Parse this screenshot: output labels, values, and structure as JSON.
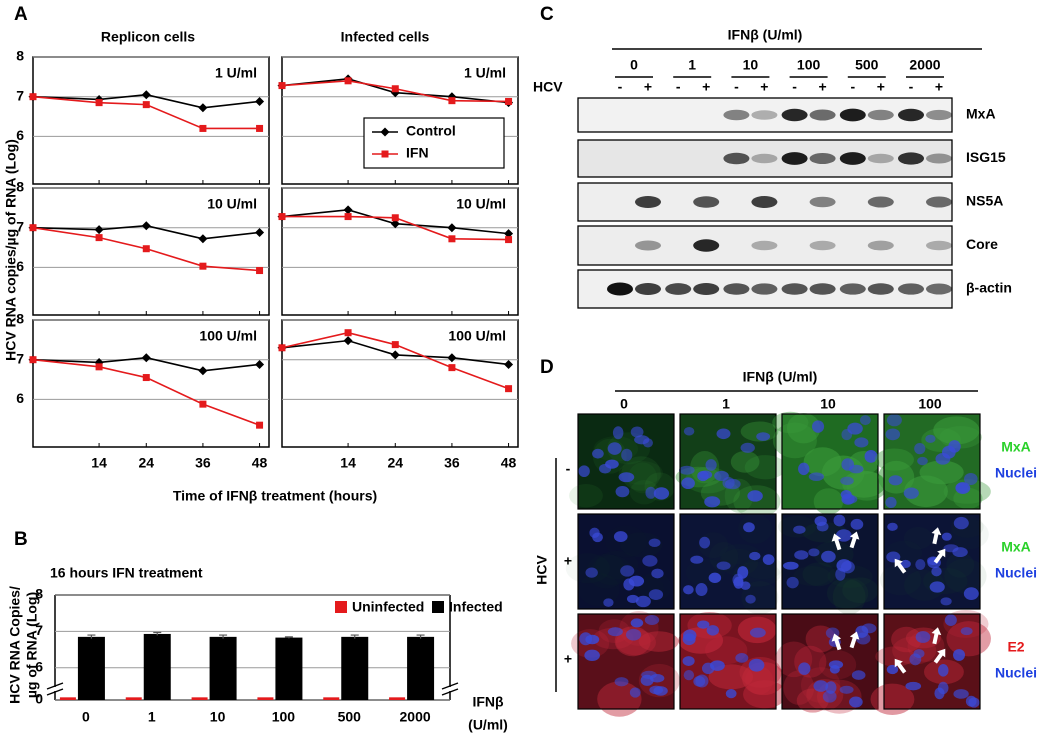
{
  "panel_a": {
    "label": "A",
    "columns": [
      "Replicon cells",
      "Infected cells"
    ],
    "y_label": "HCV RNA copies/µg of RNA (Log)",
    "x_label": "Time of IFNβ treatment (hours)"
  },
  "panel_b": {
    "label": "B"
  },
  "chart_data": [
    {
      "type": "line",
      "title": "1 U/ml",
      "x": [
        0,
        14,
        24,
        36,
        48
      ],
      "xlim": [
        0,
        50
      ],
      "xticks": [
        14,
        24,
        36,
        48
      ],
      "ylim": [
        4.8,
        8
      ],
      "yticks": [
        6,
        7,
        8
      ],
      "grid": true,
      "legend": false,
      "series": [
        {
          "name": "Control",
          "color": "#000000",
          "marker": "diamond",
          "values": [
            7,
            6.93,
            7.05,
            6.72,
            6.88
          ]
        },
        {
          "name": "IFN",
          "color": "#e41a1c",
          "marker": "square",
          "values": [
            7,
            6.85,
            6.8,
            6.2,
            6.2
          ]
        }
      ]
    },
    {
      "type": "line",
      "title": "1 U/ml",
      "x": [
        0,
        14,
        24,
        36,
        48
      ],
      "xlim": [
        0,
        50
      ],
      "xticks": [
        14,
        24,
        36,
        48
      ],
      "ylim": [
        4.8,
        8
      ],
      "yticks": [
        6,
        7,
        8
      ],
      "grid": true,
      "legend": "lower right",
      "series": [
        {
          "name": "Control",
          "color": "#000000",
          "marker": "diamond",
          "values": [
            7.28,
            7.45,
            7.1,
            7.0,
            6.85
          ]
        },
        {
          "name": "IFN",
          "color": "#e41a1c",
          "marker": "square",
          "values": [
            7.28,
            7.4,
            7.2,
            6.9,
            6.88
          ]
        }
      ]
    },
    {
      "type": "line",
      "title": "10 U/ml",
      "x": [
        0,
        14,
        24,
        36,
        48
      ],
      "xlim": [
        0,
        50
      ],
      "xticks": [
        14,
        24,
        36,
        48
      ],
      "ylim": [
        4.8,
        8
      ],
      "yticks": [
        6,
        7,
        8
      ],
      "grid": true,
      "legend": false,
      "series": [
        {
          "name": "Control",
          "color": "#000000",
          "marker": "diamond",
          "values": [
            7,
            6.95,
            7.05,
            6.72,
            6.88
          ]
        },
        {
          "name": "IFN",
          "color": "#e41a1c",
          "marker": "square",
          "values": [
            7,
            6.75,
            6.47,
            6.03,
            5.92
          ]
        }
      ]
    },
    {
      "type": "line",
      "title": "10 U/ml",
      "x": [
        0,
        14,
        24,
        36,
        48
      ],
      "xlim": [
        0,
        50
      ],
      "xticks": [
        14,
        24,
        36,
        48
      ],
      "ylim": [
        4.8,
        8
      ],
      "yticks": [
        6,
        7,
        8
      ],
      "grid": true,
      "legend": false,
      "series": [
        {
          "name": "Control",
          "color": "#000000",
          "marker": "diamond",
          "values": [
            7.28,
            7.45,
            7.1,
            7.0,
            6.85
          ]
        },
        {
          "name": "IFN",
          "color": "#e41a1c",
          "marker": "square",
          "values": [
            7.28,
            7.28,
            7.25,
            6.72,
            6.7
          ]
        }
      ]
    },
    {
      "type": "line",
      "title": "100 U/ml",
      "x": [
        0,
        14,
        24,
        36,
        48
      ],
      "xlim": [
        0,
        50
      ],
      "xticks": [
        14,
        24,
        36,
        48
      ],
      "ylim": [
        4.8,
        8
      ],
      "yticks": [
        6,
        7,
        8
      ],
      "grid": true,
      "legend": false,
      "series": [
        {
          "name": "Control",
          "color": "#000000",
          "marker": "diamond",
          "values": [
            7,
            6.93,
            7.05,
            6.72,
            6.88
          ]
        },
        {
          "name": "IFN",
          "color": "#e41a1c",
          "marker": "square",
          "values": [
            7,
            6.82,
            6.55,
            5.88,
            5.35
          ]
        }
      ]
    },
    {
      "type": "line",
      "title": "100 U/ml",
      "x": [
        0,
        14,
        24,
        36,
        48
      ],
      "xlim": [
        0,
        50
      ],
      "xticks": [
        14,
        24,
        36,
        48
      ],
      "ylim": [
        4.8,
        8
      ],
      "yticks": [
        6,
        7,
        8
      ],
      "grid": true,
      "legend": false,
      "series": [
        {
          "name": "Control",
          "color": "#000000",
          "marker": "diamond",
          "values": [
            7.3,
            7.48,
            7.12,
            7.05,
            6.88
          ]
        },
        {
          "name": "IFN",
          "color": "#e41a1c",
          "marker": "square",
          "values": [
            7.3,
            7.68,
            7.38,
            6.8,
            6.27
          ]
        }
      ]
    },
    {
      "type": "bar",
      "title": "16 hours IFN treatment",
      "y_label": [
        "HCV RNA Copies/",
        "µg of RNA (Log)"
      ],
      "x_label": [
        "IFNβ",
        "(U/ml)"
      ],
      "categories": [
        "0",
        "1",
        "10",
        "100",
        "500",
        "2000"
      ],
      "ylim": [
        0,
        8
      ],
      "y_break": [
        0.3,
        5.5
      ],
      "yticks": [
        0,
        6,
        7,
        8
      ],
      "grid": true,
      "legend": "upper right",
      "series": [
        {
          "name": "Uninfected",
          "color": "#e41a1c",
          "values": [
            0.1,
            0.1,
            0.1,
            0.1,
            0.1,
            0.1
          ]
        },
        {
          "name": "Infected",
          "color": "#000000",
          "values": [
            6.85,
            6.93,
            6.85,
            6.83,
            6.85,
            6.85
          ],
          "errors": [
            0.05,
            0.04,
            0.05,
            0.02,
            0.05,
            0.05
          ]
        }
      ]
    }
  ],
  "panel_c": {
    "label": "C",
    "title": "IFNβ (U/ml)",
    "doses": [
      "0",
      "1",
      "10",
      "100",
      "500",
      "2000"
    ],
    "hcv_label": "HCV",
    "lanes": [
      "-",
      "+",
      "-",
      "+",
      "-",
      "+",
      "-",
      "+",
      "-",
      "+",
      "-",
      "+"
    ],
    "bands": [
      "MxA",
      "ISG15",
      "NS5A",
      "Core",
      "β-actin"
    ]
  },
  "panel_d": {
    "label": "D",
    "title": "IFNβ (U/ml)",
    "doses": [
      "0",
      "1",
      "10",
      "100"
    ],
    "hcv_label": "HCV",
    "hcv_states": [
      "-",
      "+",
      "+"
    ],
    "stains": [
      [
        "MxA",
        "Nuclei"
      ],
      [
        "MxA",
        "Nuclei"
      ],
      [
        "E2",
        "Nuclei"
      ]
    ]
  }
}
